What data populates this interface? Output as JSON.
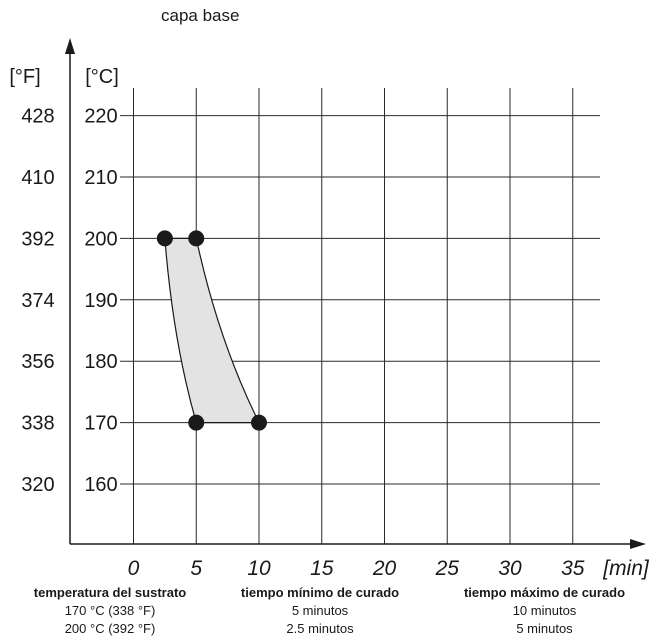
{
  "title": "capa base",
  "chart_data": {
    "type": "area",
    "xlabel": "[min]",
    "ylabel_f": "[°F]",
    "ylabel_c": "[°C]",
    "xlim": [
      0,
      37.5
    ],
    "ylim": [
      150,
      225
    ],
    "x_ticks": [
      0,
      5,
      10,
      15,
      20,
      25,
      30,
      35
    ],
    "y_ticks_c": [
      160,
      170,
      180,
      190,
      200,
      210,
      220
    ],
    "y_ticks_f": [
      320,
      338,
      356,
      374,
      392,
      410,
      428
    ],
    "grid": true,
    "region": {
      "fill": "#e3e3e3",
      "points": [
        {
          "x": 2.5,
          "y": 200
        },
        {
          "x": 5,
          "y": 200
        },
        {
          "x": 10,
          "y": 170
        },
        {
          "x": 5,
          "y": 170
        }
      ]
    },
    "marker_color": "#1a1a1a"
  },
  "table": {
    "headers": [
      "temperatura del sustrato",
      "tiempo mínimo de curado",
      "tiempo máximo de curado"
    ],
    "rows": [
      [
        "170 °C (338 °F)",
        "5 minutos",
        "10 minutos"
      ],
      [
        "200 °C (392 °F)",
        "2.5 minutos",
        "5 minutos"
      ]
    ]
  }
}
